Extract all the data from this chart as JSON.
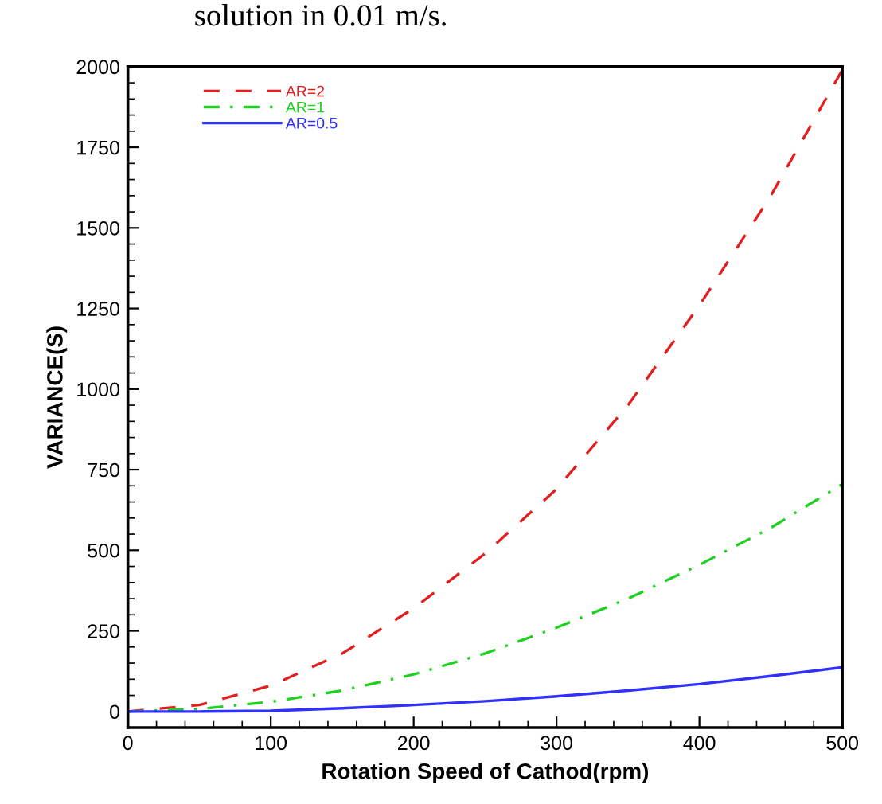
{
  "chart_data": {
    "type": "line",
    "xlabel": "Rotation Speed of Cathod(rpm)",
    "ylabel": "VARIANCE(S)",
    "annotations": [
      "solution in 0.01 m/s."
    ],
    "x": [
      0,
      50,
      100,
      150,
      200,
      250,
      300,
      350,
      400,
      450,
      500
    ],
    "series": [
      {
        "name": "AR=2",
        "color": "#e02020",
        "line_style": "dashed",
        "values": [
          0,
          20,
          80,
          180,
          320,
          490,
          690,
          950,
          1260,
          1600,
          1990
        ]
      },
      {
        "name": "AR=1",
        "color": "#20d020",
        "line_style": "dashdot",
        "values": [
          0,
          8,
          30,
          65,
          115,
          180,
          260,
          350,
          455,
          570,
          705
        ]
      },
      {
        "name": "AR=0.5",
        "color": "#3030ff",
        "line_style": "solid",
        "values": [
          0,
          0,
          2,
          10,
          20,
          32,
          47,
          65,
          85,
          110,
          137
        ]
      }
    ],
    "xlim": [
      0,
      500
    ],
    "xticks": [
      0,
      100,
      200,
      300,
      400,
      500
    ],
    "ylim": [
      -50,
      2000
    ],
    "yticks": [
      0,
      250,
      500,
      750,
      1000,
      1250,
      1500,
      1750,
      2000
    ],
    "grid": false,
    "legend": "top left",
    "marker": "none"
  }
}
